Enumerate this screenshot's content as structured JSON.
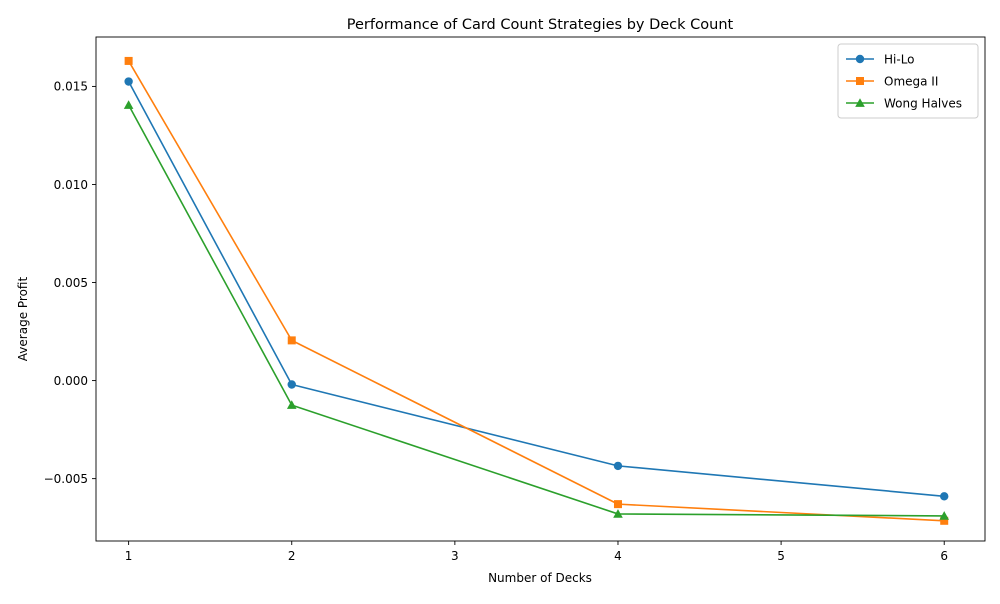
{
  "chart_data": {
    "type": "line",
    "title": "Performance of Card Count Strategies by Deck Count",
    "xlabel": "Number of Decks",
    "ylabel": "Average Profit",
    "x": [
      1,
      2,
      4,
      6
    ],
    "xlim": [
      0.8,
      6.25
    ],
    "ylim": [
      -0.00818,
      0.01752
    ],
    "xticks": [
      1,
      2,
      3,
      4,
      5,
      6
    ],
    "xtick_labels": [
      "1",
      "2",
      "3",
      "4",
      "5",
      "6"
    ],
    "yticks": [
      -0.005,
      0.0,
      0.005,
      0.01,
      0.015
    ],
    "ytick_labels": [
      "−0.005",
      "0.000",
      "0.005",
      "0.010",
      "0.015"
    ],
    "grid": false,
    "legend_position": "top-right",
    "series": [
      {
        "name": "Hi-Lo",
        "color": "#1f77b4",
        "marker": "circle",
        "values": [
          0.01525,
          -0.0002,
          -0.00435,
          -0.0059
        ]
      },
      {
        "name": "Omega II",
        "color": "#ff7f0e",
        "marker": "square",
        "values": [
          0.0163,
          0.00205,
          -0.0063,
          -0.00715
        ]
      },
      {
        "name": "Wong Halves",
        "color": "#2ca02c",
        "marker": "triangle",
        "values": [
          0.01405,
          -0.00125,
          -0.0068,
          -0.0069
        ]
      }
    ]
  }
}
